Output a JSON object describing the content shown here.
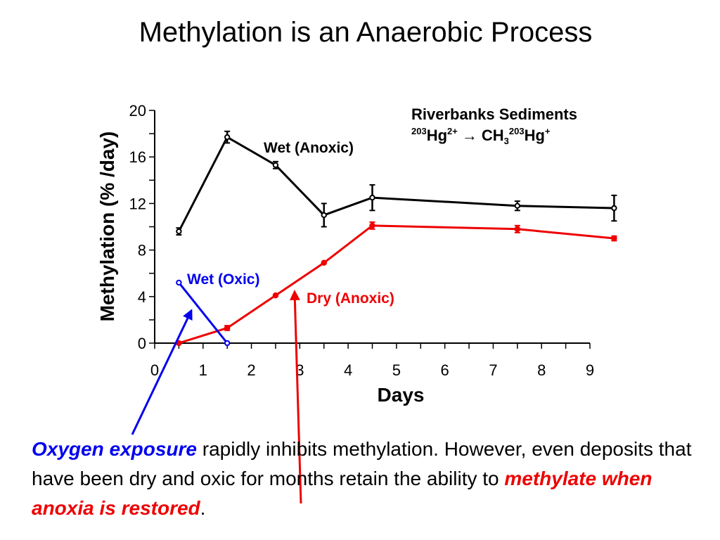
{
  "slide": {
    "title": "Methylation is an Anaerobic Process"
  },
  "chart_data": {
    "type": "line",
    "title": "",
    "xlabel": "Days",
    "ylabel": "Methylation (% /day)",
    "xlim": [
      0,
      9
    ],
    "ylim": [
      0,
      20
    ],
    "x_ticks": [
      "0",
      "1",
      "2",
      "3",
      "4",
      "5",
      "6",
      "7",
      "8",
      "9"
    ],
    "y_ticks": [
      "0",
      "4",
      "8",
      "12",
      "16",
      "20"
    ],
    "grid": false,
    "annotation": {
      "line1": "Riverbanks Sediments",
      "line2": {
        "iso1": "203",
        "el1": "Hg",
        "charge1": "2+",
        "arrow": "→",
        "el2": "CH",
        "sub": "3",
        "iso2": "203",
        "el3": "Hg",
        "charge2": "+"
      }
    },
    "series": [
      {
        "name": "Wet (Anoxic)",
        "color": "#000000",
        "points": [
          {
            "x": 0.5,
            "y": 9.6,
            "err": 0.3
          },
          {
            "x": 1.5,
            "y": 17.7,
            "err": 0.5
          },
          {
            "x": 2.5,
            "y": 15.3,
            "err": 0.3
          },
          {
            "x": 3.5,
            "y": 11.0,
            "err": 1.0
          },
          {
            "x": 4.5,
            "y": 12.5,
            "err": 1.1
          },
          {
            "x": 7.5,
            "y": 11.8,
            "err": 0.4
          },
          {
            "x": 9.5,
            "y": 11.6,
            "err": 1.1
          }
        ]
      },
      {
        "name": "Dry (Anoxic)",
        "color": "#ee0000",
        "points": [
          {
            "x": 0.5,
            "y": 0.0,
            "err": 0
          },
          {
            "x": 1.5,
            "y": 1.3,
            "err": 0.2
          },
          {
            "x": 2.5,
            "y": 4.1,
            "err": 0
          },
          {
            "x": 3.5,
            "y": 6.9,
            "err": 0
          },
          {
            "x": 4.5,
            "y": 10.1,
            "err": 0.3
          },
          {
            "x": 7.5,
            "y": 9.8,
            "err": 0.3
          },
          {
            "x": 9.5,
            "y": 9.0,
            "err": 0.2
          }
        ]
      },
      {
        "name": "Wet (Oxic)",
        "color": "#0000ee",
        "points": [
          {
            "x": 0.5,
            "y": 5.2,
            "err": 0
          },
          {
            "x": 1.5,
            "y": 0.0,
            "err": 0
          }
        ]
      }
    ]
  },
  "caption": {
    "part1": "Oxygen exposure",
    "part2": " rapidly inhibits methylation.  However, even deposits that have been dry and oxic for months retain the ability to ",
    "part3": "methylate when anoxia is restored",
    "part4": "."
  }
}
